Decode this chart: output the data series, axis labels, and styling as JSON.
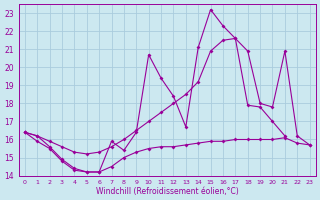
{
  "background_color": "#cce8f0",
  "grid_color": "#aaccdd",
  "line_color": "#990099",
  "xlabel": "Windchill (Refroidissement éolien,°C)",
  "xlim": [
    -0.5,
    23.5
  ],
  "ylim": [
    14,
    23.5
  ],
  "yticks": [
    14,
    15,
    16,
    17,
    18,
    19,
    20,
    21,
    22,
    23
  ],
  "xticks": [
    0,
    1,
    2,
    3,
    4,
    5,
    6,
    7,
    8,
    9,
    10,
    11,
    12,
    13,
    14,
    15,
    16,
    17,
    18,
    19,
    20,
    21,
    22,
    23
  ],
  "series": [
    {
      "x": [
        0,
        1,
        2,
        3,
        4,
        5,
        6,
        7,
        8,
        9,
        10,
        11,
        12,
        13,
        14,
        15,
        16,
        17,
        18,
        19,
        20,
        21,
        22,
        23
      ],
      "y": [
        16.4,
        15.9,
        15.5,
        14.8,
        14.3,
        14.2,
        14.2,
        14.5,
        15.0,
        15.3,
        15.5,
        15.6,
        15.6,
        15.7,
        15.8,
        15.9,
        15.9,
        16.0,
        16.0,
        16.0,
        16.0,
        16.1,
        15.8,
        15.7
      ]
    },
    {
      "x": [
        0,
        1,
        2,
        3,
        4,
        5,
        6,
        7,
        8,
        9,
        10,
        11,
        12,
        13,
        14,
        15,
        16,
        17,
        18,
        19,
        20,
        21,
        22,
        23
      ],
      "y": [
        16.4,
        16.2,
        15.9,
        15.6,
        15.3,
        15.2,
        15.3,
        15.6,
        16.0,
        16.5,
        17.0,
        17.5,
        18.0,
        18.5,
        19.2,
        20.9,
        21.5,
        21.6,
        20.9,
        18.0,
        17.8,
        20.9,
        16.2,
        15.7
      ]
    },
    {
      "x": [
        0,
        1,
        2,
        3,
        4,
        5,
        6,
        7,
        8,
        9,
        10,
        11,
        12,
        13,
        14,
        15,
        16,
        17,
        18,
        19,
        20,
        21
      ],
      "y": [
        16.4,
        16.2,
        15.6,
        14.9,
        14.4,
        14.2,
        14.2,
        15.9,
        15.4,
        16.4,
        20.7,
        19.4,
        18.4,
        16.7,
        21.1,
        23.2,
        22.3,
        21.6,
        17.9,
        17.8,
        17.0,
        16.2
      ]
    }
  ]
}
